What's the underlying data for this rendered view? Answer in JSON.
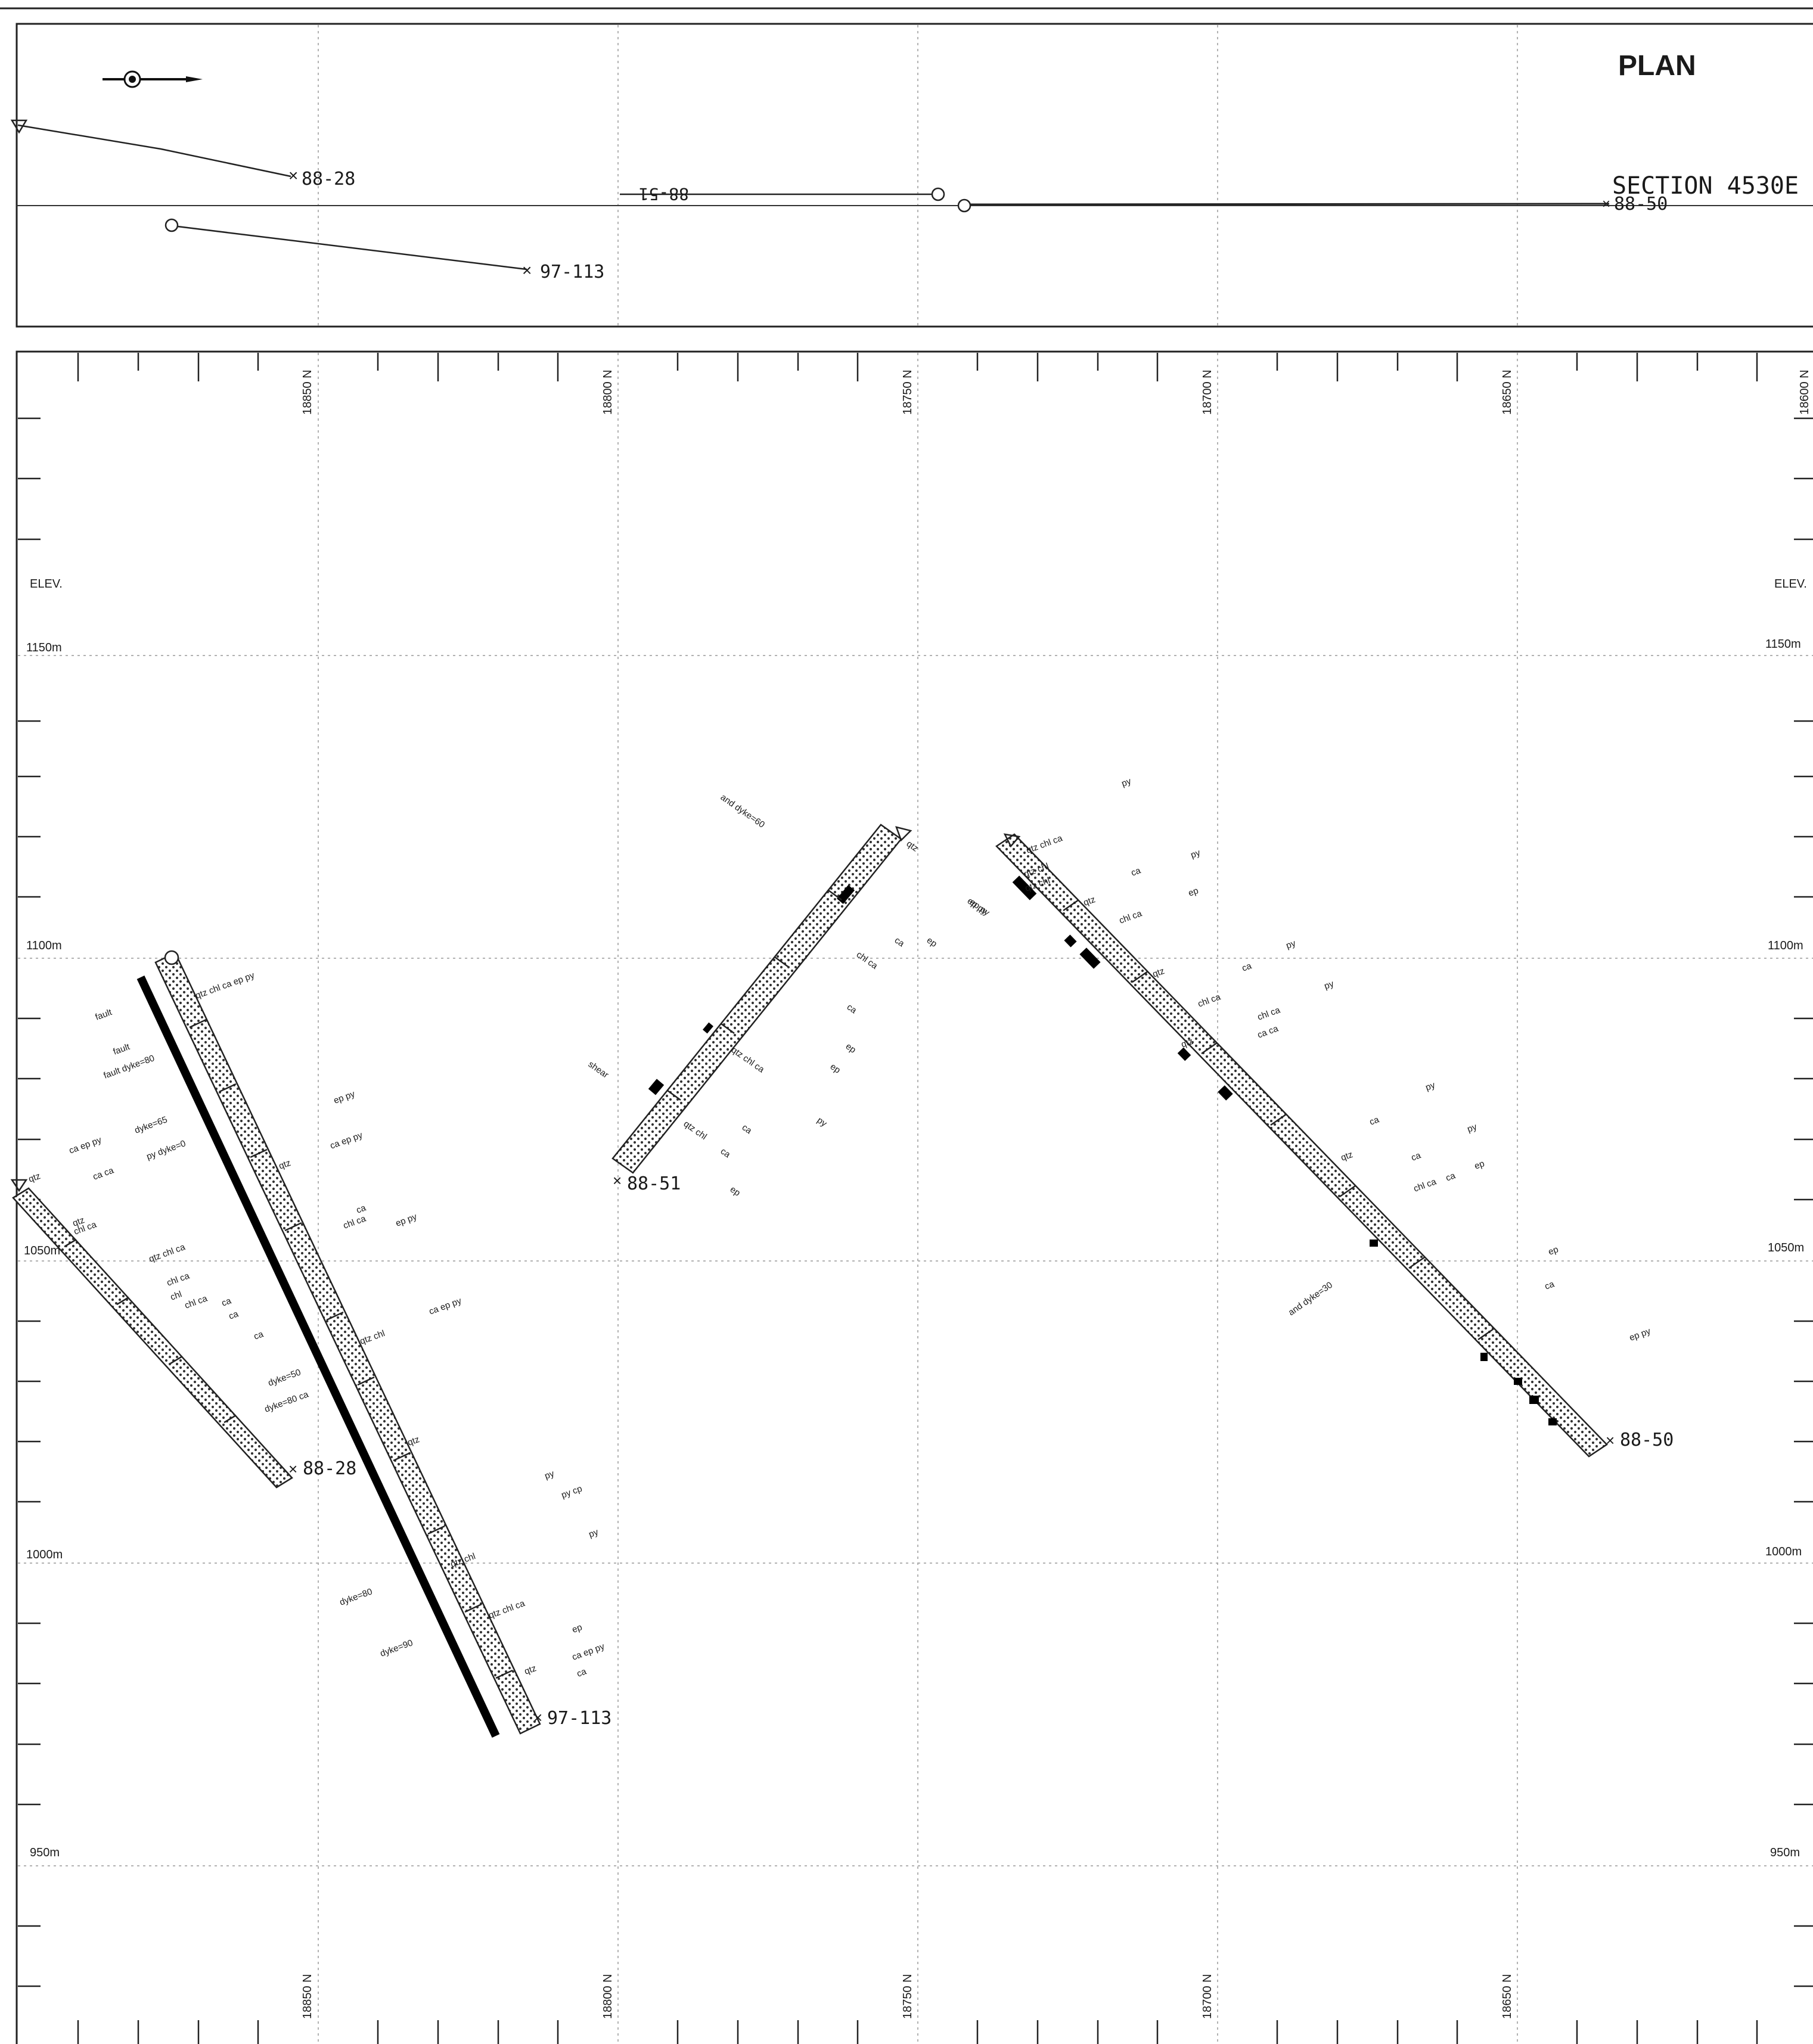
{
  "plan": {
    "title": "PLAN",
    "section_label": "SECTION  4530E"
  },
  "elevation_axis": {
    "header": "ELEV.",
    "levels": [
      "1150m",
      "1100m",
      "1050m",
      "1000m",
      "950m"
    ]
  },
  "northing_axis": {
    "labels": [
      "18850 N",
      "18800 N",
      "18750 N",
      "18700 N",
      "18650 N",
      "18600 N"
    ]
  },
  "drillholes": [
    {
      "id": "88-28",
      "structure": "fault"
    },
    {
      "id": "97-113",
      "structure": "dyke"
    },
    {
      "id": "88-51",
      "structure": "shear"
    },
    {
      "id": "88-50",
      "structure": "dyke"
    }
  ],
  "annotations": {
    "hole_97_113": [
      "qtz chl ca ep py",
      "ep py",
      "ca ep py",
      "ca",
      "chl ca",
      "ep py",
      "qtz",
      "qtz chl",
      "ca ep py",
      "py",
      "py cp",
      "qtz chl",
      "dyke=80",
      "qtz chl ca",
      "ep",
      "dyke=90",
      "ca ep py",
      "py",
      "qtz",
      "ca",
      "qtz",
      "dyke=50",
      "dyke=80 ca"
    ],
    "hole_88_28": [
      "fault",
      "fault",
      "fault dyke=80",
      "dyke=65",
      "py dyke=0",
      "ca ep py",
      "ca ca",
      "qtz",
      "qtz",
      "chl ca",
      "qtz chl ca",
      "chl ca",
      "chl",
      "chl ca",
      "ca",
      "ca",
      "ca"
    ],
    "hole_88_51": [
      "and dyke=60",
      "qtz",
      "ep py",
      "chl ca",
      "ca",
      "ep",
      "ca",
      "ep",
      "ep",
      "shear",
      "qtz chl ca",
      "ca",
      "py",
      "qtz chl",
      "ca",
      "ep",
      "ep py"
    ],
    "hole_88_50": [
      "py",
      "qtz chl ca",
      "qtz chl",
      "qtz chl",
      "ca",
      "py",
      "ep",
      "qtz",
      "chl ca",
      "qtz",
      "chl ca",
      "ca",
      "py",
      "py",
      "chl ca",
      "ca ca",
      "qtz",
      "py",
      "ca",
      "qtz",
      "ca",
      "py",
      "chl ca",
      "ca",
      "ep",
      "and dyke=30",
      "ep",
      "ca",
      "ep py"
    ]
  }
}
